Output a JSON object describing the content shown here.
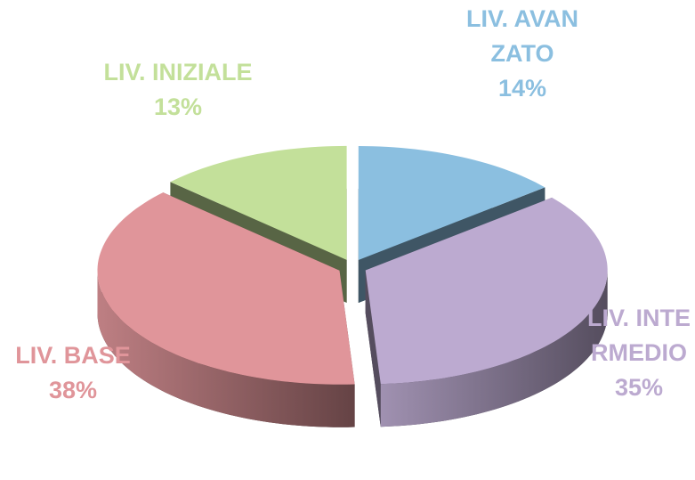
{
  "chart_data": {
    "type": "pie",
    "categories": [
      "LIV. AVANZATO",
      "LIV. INTERMEDIO",
      "LIV. BASE",
      "LIV. INIZIALE"
    ],
    "values": [
      14,
      35,
      38,
      13
    ],
    "value_labels": [
      "14%",
      "35%",
      "38%",
      "13%"
    ],
    "colors": [
      "#8bbfe0",
      "#bcaad0",
      "#e0959a",
      "#c3e09a"
    ]
  }
}
